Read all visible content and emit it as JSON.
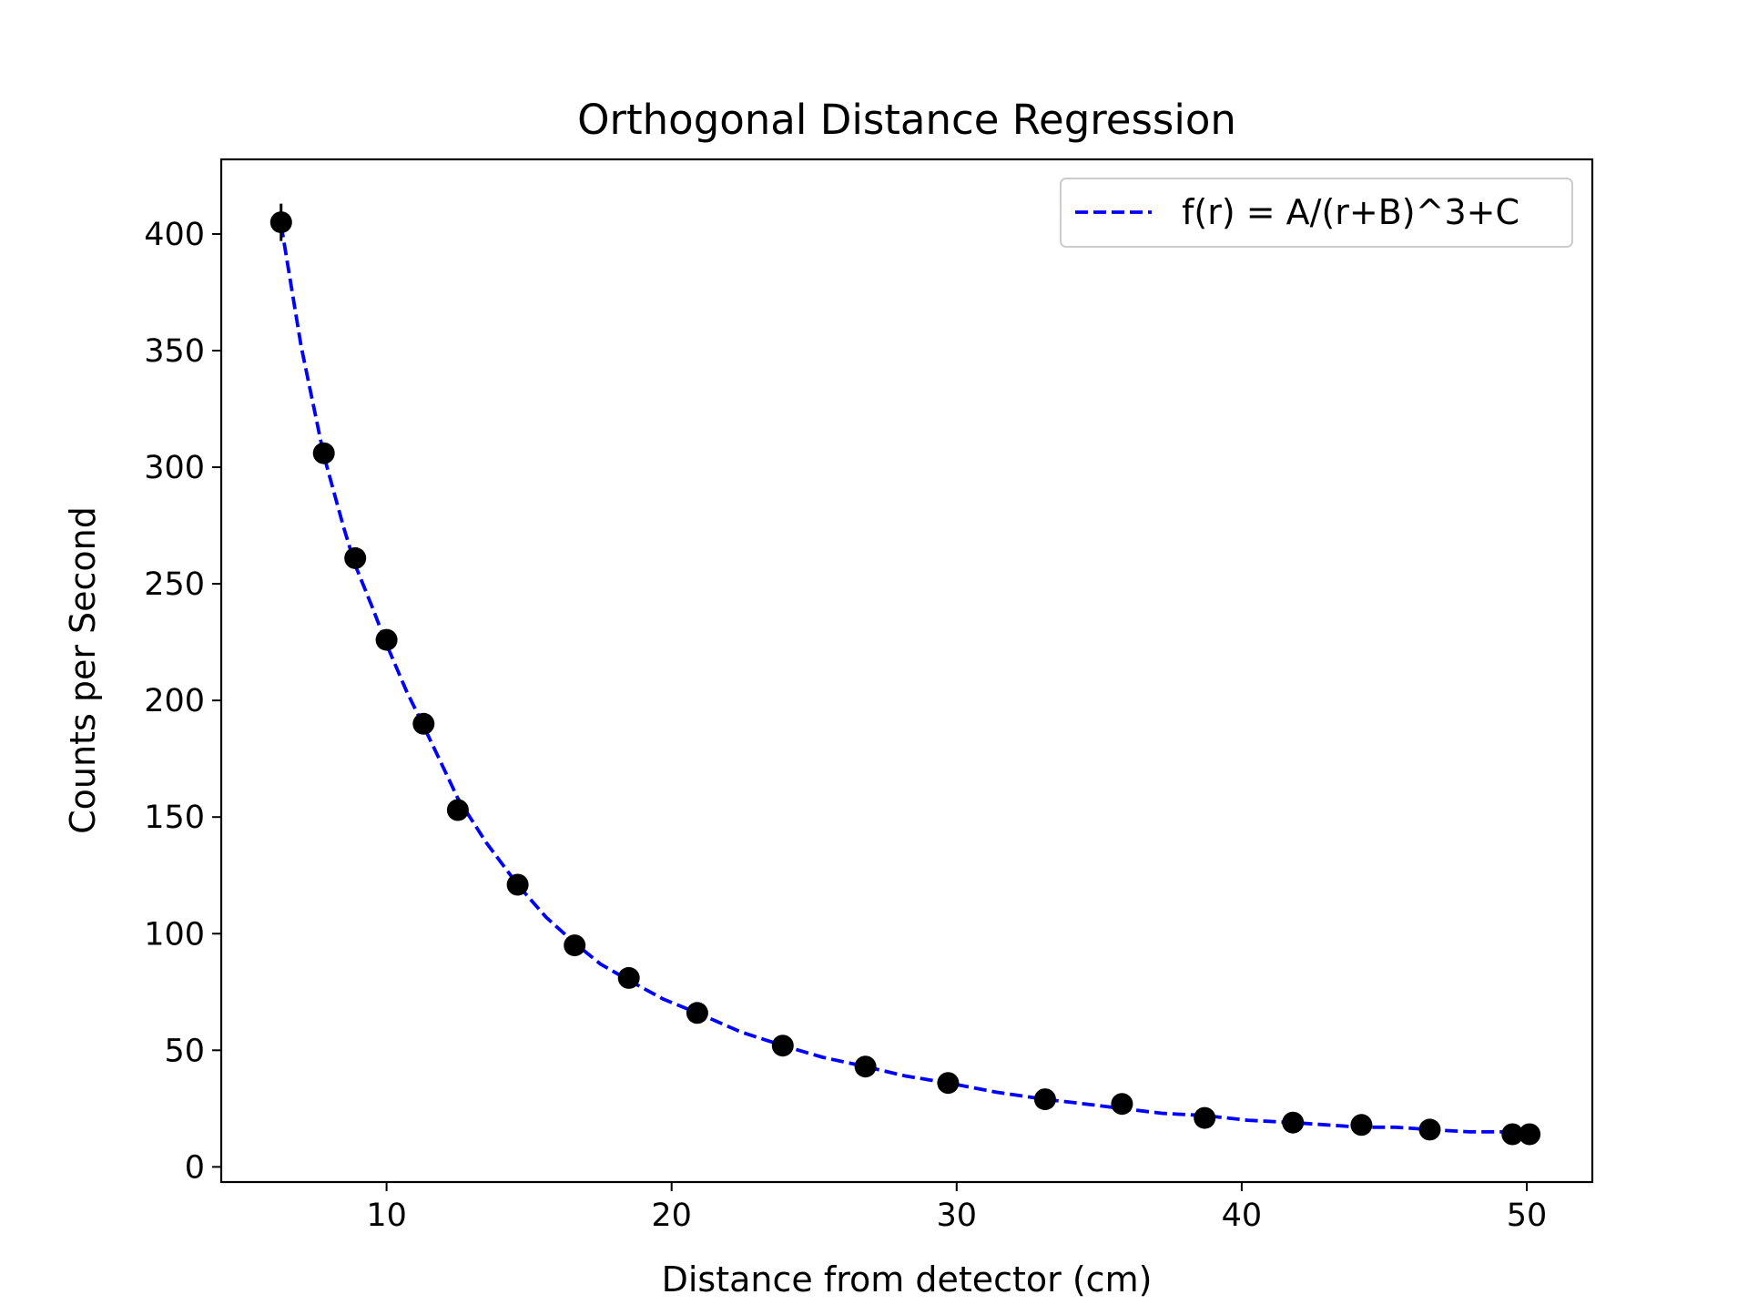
{
  "chart_data": {
    "type": "scatter",
    "title": "Orthogonal Distance Regression",
    "xlabel": "Distance from detector (cm)",
    "ylabel": "Counts per Second",
    "xlim": [
      4.2,
      52.3
    ],
    "ylim": [
      -6.5,
      432.0
    ],
    "x_ticks": [
      10,
      20,
      30,
      40,
      50
    ],
    "y_ticks": [
      0,
      50,
      100,
      150,
      200,
      250,
      300,
      350,
      400
    ],
    "grid": false,
    "legend_position": "top-right",
    "series": [
      {
        "marker_color": "#000000",
        "x": [
          6.3,
          7.8,
          8.9,
          10.0,
          11.3,
          12.5,
          14.6,
          16.6,
          18.5,
          20.9,
          23.9,
          26.8,
          29.7,
          33.1,
          35.8,
          38.7,
          41.8,
          44.2,
          46.6,
          49.5,
          50.1
        ],
        "y": [
          405,
          306,
          261,
          226,
          190,
          153,
          121,
          95,
          81,
          66,
          52,
          43,
          36,
          29,
          27,
          21,
          19,
          18,
          16,
          14,
          14
        ],
        "yerr": [
          8,
          0,
          0,
          0,
          0,
          0,
          0,
          0,
          0,
          0,
          0,
          0,
          0,
          0,
          0,
          0,
          0,
          0,
          0,
          0,
          0
        ]
      },
      {
        "name": "f(r) = A/(r+B)^3+C",
        "style": "dashed",
        "color": "#0000ff",
        "x": [
          6.3,
          7.0,
          7.8,
          8.5,
          8.9,
          9.5,
          10.0,
          10.7,
          11.3,
          12.0,
          12.5,
          13.5,
          14.6,
          15.6,
          16.6,
          17.5,
          18.5,
          19.7,
          20.9,
          22.4,
          23.9,
          25.3,
          26.8,
          28.2,
          29.7,
          31.4,
          33.1,
          34.5,
          35.8,
          37.2,
          38.7,
          40.2,
          41.8,
          43.0,
          44.2,
          45.4,
          46.6,
          48.0,
          49.5,
          50.1
        ],
        "y": [
          404,
          352,
          305,
          274,
          258,
          240,
          224,
          204,
          189,
          171,
          158,
          139,
          121,
          107,
          96,
          87,
          80,
          72,
          66,
          58,
          52,
          47,
          43,
          39,
          36,
          32,
          29,
          27,
          25,
          23,
          22,
          20,
          19,
          18,
          17,
          17,
          16,
          15,
          15,
          14
        ]
      }
    ]
  }
}
